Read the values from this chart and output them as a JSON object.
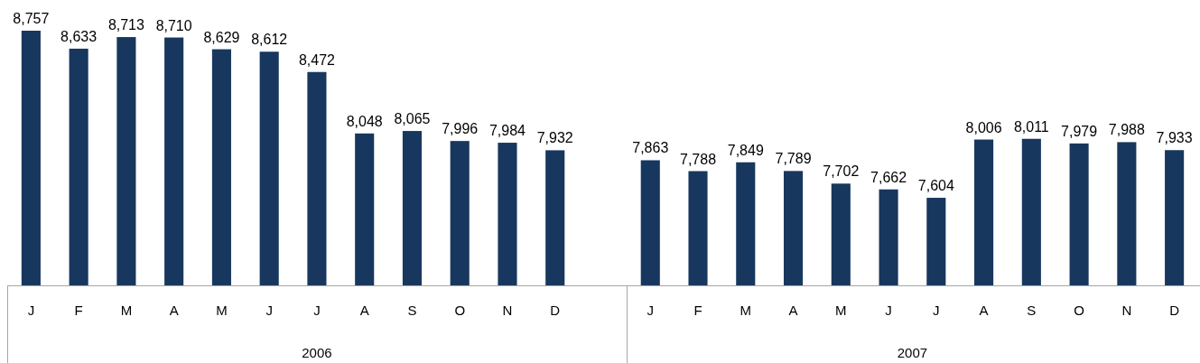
{
  "chart_data": {
    "type": "bar",
    "categories": [
      "J",
      "F",
      "M",
      "A",
      "M",
      "J",
      "J",
      "A",
      "S",
      "O",
      "N",
      "D",
      null,
      "J",
      "F",
      "M",
      "A",
      "M",
      "J",
      "J",
      "A",
      "S",
      "O",
      "N",
      "D"
    ],
    "values": [
      8757,
      8633,
      8713,
      8710,
      8629,
      8612,
      8472,
      8048,
      8065,
      7996,
      7984,
      7932,
      null,
      7863,
      7788,
      7849,
      7789,
      7702,
      7662,
      7604,
      8006,
      8011,
      7979,
      7988,
      7933
    ],
    "value_labels": [
      "8,757",
      "8,633",
      "8,713",
      "8,710",
      "8,629",
      "8,612",
      "8,472",
      "8,048",
      "8,065",
      "7,996",
      "7,984",
      "7,932",
      null,
      "7,863",
      "7,788",
      "7,849",
      "7,789",
      "7,702",
      "7,662",
      "7,604",
      "8,006",
      "8,011",
      "7,979",
      "7,988",
      "7,933"
    ],
    "color": "#17375e",
    "ylim": [
      7000,
      8757
    ],
    "tick_labels": "x",
    "annotations": [
      "2006",
      "2007"
    ]
  }
}
